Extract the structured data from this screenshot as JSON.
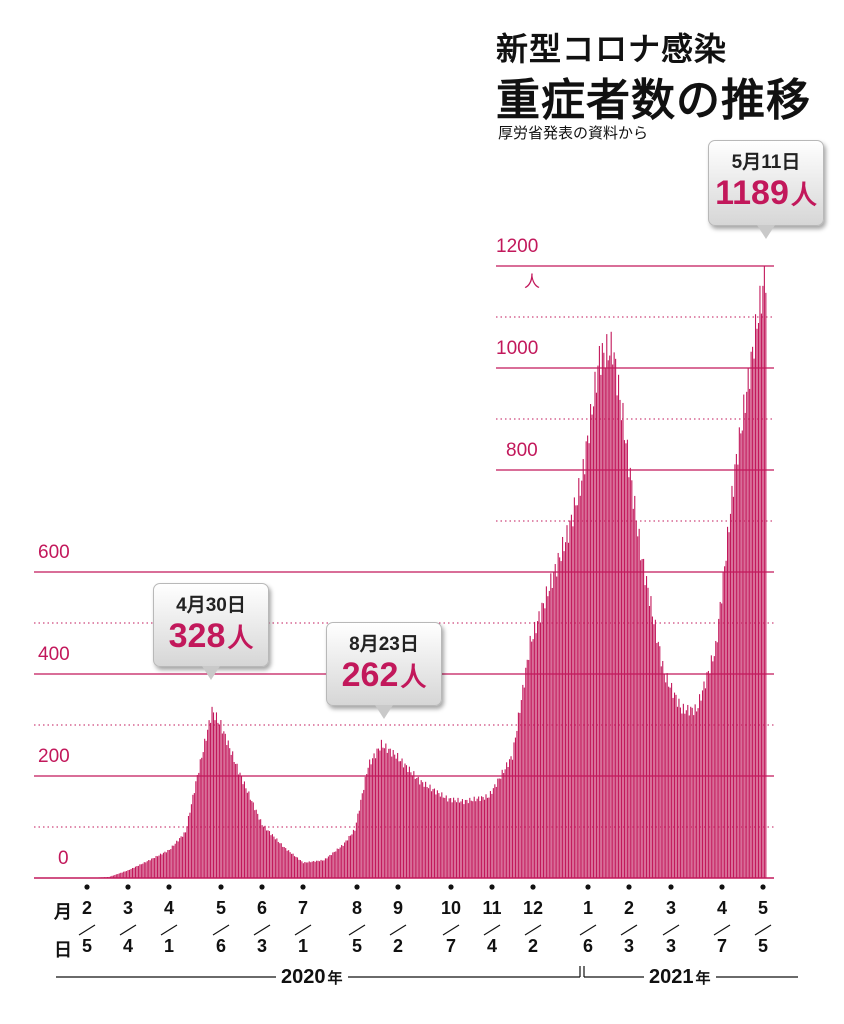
{
  "title": {
    "line1": "新型コロナ感染",
    "line2": "重症者数の推移",
    "source": "厚労省発表の資料から"
  },
  "chart_data": {
    "type": "bar",
    "title": "重症者数の推移",
    "ylabel": "人",
    "ylim": [
      0,
      1200
    ],
    "yticks": [
      "0",
      "200",
      "400",
      "600",
      "800",
      "1000",
      "1200"
    ],
    "y_unit": "人",
    "color": "#c2185b",
    "grid": true,
    "series_points": [
      [
        "2020-02-05",
        0
      ],
      [
        "2020-02-20",
        2
      ],
      [
        "2020-03-04",
        15
      ],
      [
        "2020-03-15",
        30
      ],
      [
        "2020-04-01",
        55
      ],
      [
        "2020-04-12",
        90
      ],
      [
        "2020-04-20",
        200
      ],
      [
        "2020-04-30",
        328
      ],
      [
        "2020-05-06",
        300
      ],
      [
        "2020-05-18",
        210
      ],
      [
        "2020-06-03",
        105
      ],
      [
        "2020-06-18",
        60
      ],
      [
        "2020-07-01",
        30
      ],
      [
        "2020-07-15",
        35
      ],
      [
        "2020-07-28",
        65
      ],
      [
        "2020-08-05",
        95
      ],
      [
        "2020-08-14",
        220
      ],
      [
        "2020-08-23",
        262
      ],
      [
        "2020-09-02",
        240
      ],
      [
        "2020-09-18",
        190
      ],
      [
        "2020-10-07",
        155
      ],
      [
        "2020-10-18",
        150
      ],
      [
        "2020-11-04",
        160
      ],
      [
        "2020-11-20",
        240
      ],
      [
        "2020-12-02",
        460
      ],
      [
        "2020-12-15",
        570
      ],
      [
        "2020-12-28",
        680
      ],
      [
        "2021-01-06",
        780
      ],
      [
        "2021-01-18",
        1020
      ],
      [
        "2021-01-27",
        1040
      ],
      [
        "2021-02-03",
        900
      ],
      [
        "2021-02-15",
        640
      ],
      [
        "2021-03-03",
        400
      ],
      [
        "2021-03-15",
        330
      ],
      [
        "2021-03-25",
        330
      ],
      [
        "2021-04-07",
        450
      ],
      [
        "2021-04-20",
        800
      ],
      [
        "2021-05-05",
        1090
      ],
      [
        "2021-05-11",
        1189
      ]
    ],
    "x_tick_labels": [
      {
        "month": "2",
        "day": "5"
      },
      {
        "month": "3",
        "day": "4"
      },
      {
        "month": "4",
        "day": "1"
      },
      {
        "month": "5",
        "day": "6"
      },
      {
        "month": "6",
        "day": "3"
      },
      {
        "month": "7",
        "day": "1"
      },
      {
        "month": "8",
        "day": "5"
      },
      {
        "month": "9",
        "day": "2"
      },
      {
        "month": "10",
        "day": "7"
      },
      {
        "month": "11",
        "day": "4"
      },
      {
        "month": "12",
        "day": "2"
      },
      {
        "month": "1",
        "day": "6"
      },
      {
        "month": "2",
        "day": "3"
      },
      {
        "month": "3",
        "day": "3"
      },
      {
        "month": "4",
        "day": "7"
      },
      {
        "month": "5",
        "day": "5"
      }
    ],
    "x_row_labels": {
      "month": "月",
      "day": "日"
    },
    "years": [
      {
        "year": "2020",
        "suffix": "年"
      },
      {
        "year": "2021",
        "suffix": "年"
      }
    ],
    "annotations": [
      {
        "date": "4月30日",
        "value": "328",
        "unit": "人"
      },
      {
        "date": "8月23日",
        "value": "262",
        "unit": "人"
      },
      {
        "date": "5月11日",
        "value": "1189",
        "unit": "人"
      }
    ]
  }
}
